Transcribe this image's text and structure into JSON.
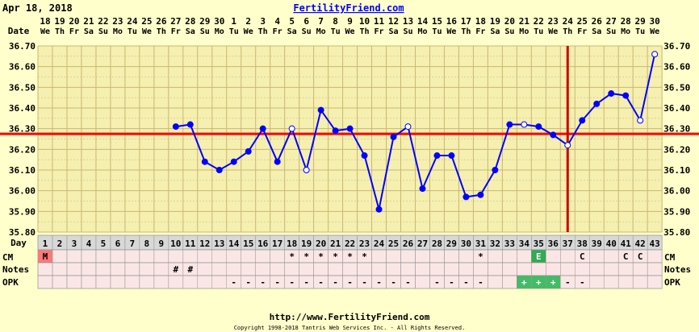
{
  "header": {
    "date": "Apr 18, 2018",
    "site": "FertilityFriend.com"
  },
  "footer": {
    "url": "http://www.FertilityFriend.com",
    "copyright": "Copyright 1998-2018 Tantris Web Services Inc. - All Rights Reserved."
  },
  "colors": {
    "background": "#ffffcc",
    "plot_bg": "#f5efb0",
    "grid": "#c9b870",
    "line": "#0000ff",
    "coverline": "#ff0000",
    "ovulation": "#cc0000",
    "menses": "#ff7777",
    "egg_white": "#33aa55",
    "opk_positive": "#44bb66",
    "row_bg": "#fbe6e6",
    "day_row_bg": "#d8d8d8"
  },
  "chart_data": {
    "type": "line",
    "row_labels": {
      "date": "Date",
      "day": "Day",
      "cm": "CM",
      "notes": "Notes",
      "opk": "OPK"
    },
    "dates": [
      "18",
      "19",
      "20",
      "21",
      "22",
      "23",
      "24",
      "25",
      "26",
      "27",
      "28",
      "29",
      "30",
      "1",
      "2",
      "3",
      "4",
      "5",
      "6",
      "7",
      "8",
      "9",
      "10",
      "11",
      "12",
      "13",
      "14",
      "15",
      "16",
      "17",
      "18",
      "19",
      "20",
      "21",
      "22",
      "23",
      "24",
      "25",
      "26",
      "27",
      "28",
      "29",
      "30"
    ],
    "weekdays": [
      "We",
      "Th",
      "Fr",
      "Sa",
      "Su",
      "Mo",
      "Tu",
      "We",
      "Th",
      "Fr",
      "Sa",
      "Su",
      "Mo",
      "Tu",
      "We",
      "Th",
      "Fr",
      "Sa",
      "Su",
      "Mo",
      "Tu",
      "We",
      "Th",
      "Fr",
      "Sa",
      "Su",
      "Mo",
      "Tu",
      "We",
      "Th",
      "Fr",
      "Sa",
      "Su",
      "Mo",
      "Tu",
      "We",
      "Th",
      "Fr",
      "Sa",
      "Su",
      "Mo",
      "Tu",
      "We"
    ],
    "days": [
      "1",
      "2",
      "3",
      "4",
      "5",
      "6",
      "7",
      "8",
      "9",
      "10",
      "11",
      "12",
      "13",
      "14",
      "15",
      "16",
      "17",
      "18",
      "19",
      "20",
      "21",
      "22",
      "23",
      "24",
      "25",
      "26",
      "27",
      "28",
      "29",
      "30",
      "31",
      "32",
      "33",
      "34",
      "35",
      "36",
      "37",
      "38",
      "39",
      "40",
      "41",
      "42",
      "43"
    ],
    "ylim": [
      35.8,
      36.7
    ],
    "yticks": [
      "35.80",
      "35.90",
      "36.00",
      "36.10",
      "36.20",
      "36.30",
      "36.40",
      "36.50",
      "36.60",
      "36.70"
    ],
    "temps": [
      null,
      null,
      null,
      null,
      null,
      null,
      null,
      null,
      null,
      36.31,
      36.32,
      36.14,
      36.1,
      36.14,
      36.19,
      36.3,
      36.14,
      36.3,
      36.1,
      36.39,
      36.29,
      36.3,
      36.17,
      35.91,
      36.26,
      36.31,
      36.01,
      36.17,
      36.17,
      35.97,
      35.98,
      36.1,
      36.32,
      36.32,
      36.31,
      36.27,
      36.22,
      36.34,
      36.42,
      36.47,
      36.46,
      36.34,
      36.66
    ],
    "open_points": [
      17,
      18,
      25,
      33,
      36,
      41,
      42
    ],
    "coverline": 36.275,
    "ovulation_day": 37,
    "cm": [
      "M",
      "",
      "",
      "",
      "",
      "",
      "",
      "",
      "",
      "",
      "",
      "",
      "",
      "",
      "",
      "",
      "",
      "*",
      "*",
      "*",
      "*",
      "*",
      "*",
      "",
      "",
      "",
      "",
      "",
      "",
      "",
      "*",
      "",
      "",
      "",
      "E",
      "",
      "",
      "C",
      "",
      "",
      "C",
      "C",
      ""
    ],
    "notes": [
      "",
      "",
      "",
      "",
      "",
      "",
      "",
      "",
      "",
      "#",
      "#",
      "",
      "",
      "",
      "",
      "",
      "",
      "",
      "",
      "",
      "",
      "",
      "",
      "",
      "",
      "",
      "",
      "",
      "",
      "",
      "",
      "",
      "",
      "",
      "",
      "",
      "",
      "",
      "",
      "",
      "",
      "",
      ""
    ],
    "opk": [
      "",
      "",
      "",
      "",
      "",
      "",
      "",
      "",
      "",
      "",
      "",
      "",
      "",
      "-",
      "-",
      "-",
      "-",
      "-",
      "-",
      "-",
      "-",
      "-",
      "-",
      "-",
      "-",
      "-",
      "",
      "-",
      "-",
      "-",
      "-",
      "",
      "",
      "+",
      "+",
      "+",
      "-",
      "-",
      "",
      "",
      "",
      "",
      ""
    ]
  }
}
